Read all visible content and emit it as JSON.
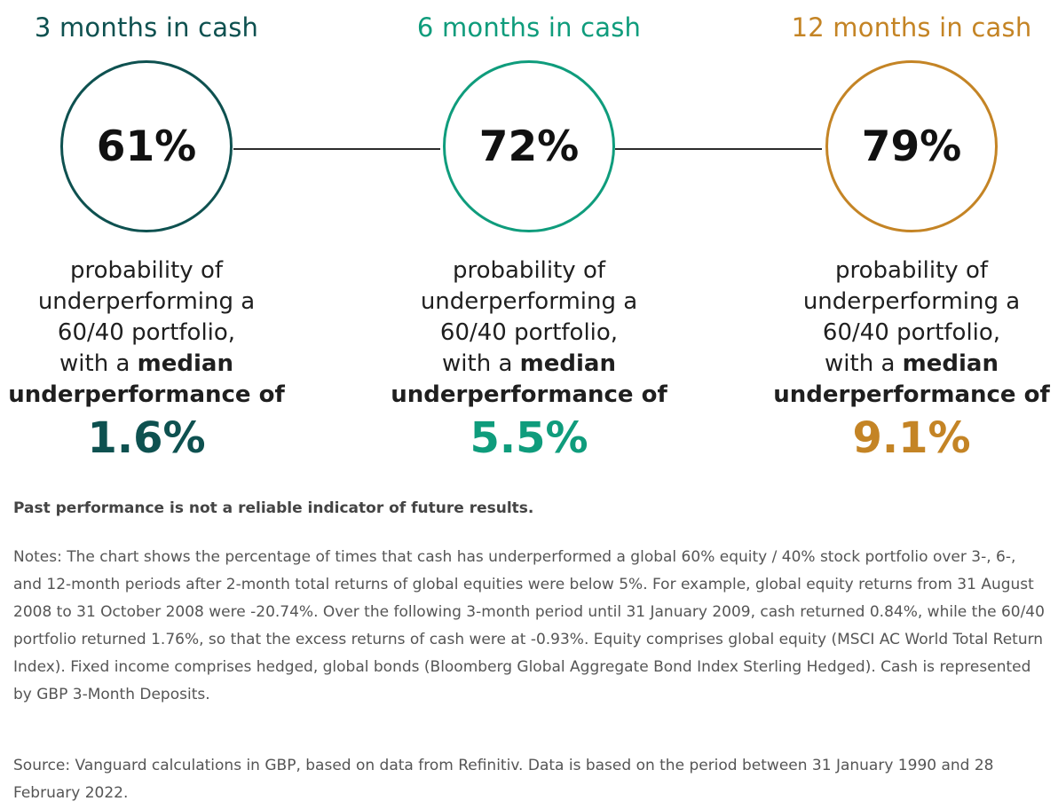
{
  "chart_data": {
    "type": "infographic",
    "items": [
      {
        "title": "3 months in cash",
        "probability": "61%",
        "desc_line1": "probability of",
        "desc_line2": "underperforming a",
        "desc_line3": "60/40 portfolio,",
        "desc_line4_regular": "with a ",
        "desc_line4_bold": "median",
        "desc_line5": "underperformance of",
        "median_underperformance": "1.6%",
        "color": "#0e5150"
      },
      {
        "title": "6 months in cash",
        "probability": "72%",
        "desc_line1": "probability of",
        "desc_line2": "underperforming a",
        "desc_line3": "60/40 portfolio,",
        "desc_line4_regular": "with a ",
        "desc_line4_bold": "median",
        "desc_line5": "underperformance of",
        "median_underperformance": "5.5%",
        "color": "#0f9c7c"
      },
      {
        "title": "12 months in cash",
        "probability": "79%",
        "desc_line1": "probability of",
        "desc_line2": "underperforming a",
        "desc_line3": "60/40 portfolio,",
        "desc_line4_regular": "with a ",
        "desc_line4_bold": "median",
        "desc_line5": "underperformance of",
        "median_underperformance": "9.1%",
        "color": "#c48425"
      }
    ]
  },
  "disclaimer": "Past performance is not a reliable indicator of future results.",
  "notes": "Notes: The chart shows the percentage of times that cash has underperformed a global 60% equity / 40% stock portfolio over 3-, 6-, and 12-month periods after 2-month total returns of global equities were below 5%. For example, global equity returns from 31 August 2008 to 31 October 2008 were -20.74%. Over the following 3-month period until 31 January 2009, cash returned 0.84%, while the 60/40 portfolio returned 1.76%, so that the excess returns of cash were at -0.93%. Equity comprises global equity (MSCI AC World Total Return Index). Fixed income comprises hedged, global bonds (Bloomberg Global Aggregate Bond Index Sterling Hedged). Cash is represented by GBP 3-Month Deposits.",
  "source": "Source: Vanguard calculations in GBP, based on data from Refinitiv. Data is based on the period between 31 January 1990 and 28 February 2022.",
  "connector_color": "#2b2b2b"
}
